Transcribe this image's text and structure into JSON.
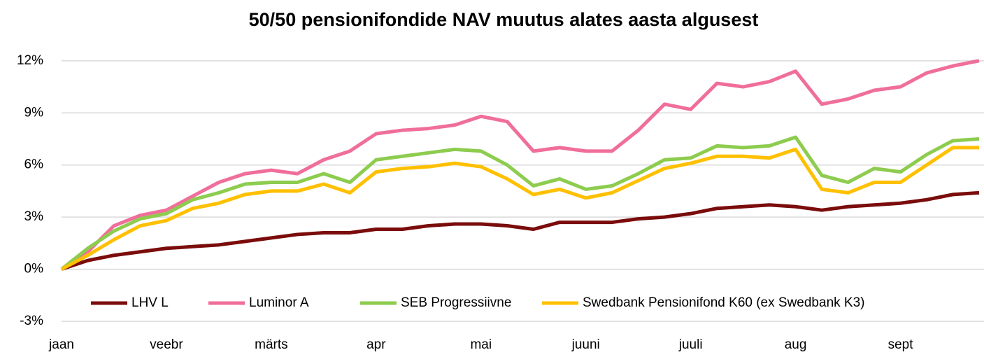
{
  "chart_data": {
    "type": "line",
    "title": "50/50 pensionifondide NAV muutus alates aasta algusest",
    "categories": [
      "jaan",
      null,
      null,
      null,
      "veebr",
      null,
      null,
      null,
      "märts",
      null,
      null,
      null,
      "apr",
      null,
      null,
      null,
      "mai",
      null,
      null,
      null,
      "juuni",
      null,
      null,
      null,
      "juuli",
      null,
      null,
      null,
      "aug",
      null,
      null,
      null,
      "sept",
      null,
      null,
      null
    ],
    "series": [
      {
        "name": "LHV L",
        "color": "#7b0c0c",
        "values": [
          0,
          0.5,
          0.8,
          1.0,
          1.2,
          1.3,
          1.4,
          1.6,
          1.8,
          2.0,
          2.1,
          2.1,
          2.3,
          2.3,
          2.5,
          2.6,
          2.6,
          2.5,
          2.3,
          2.7,
          2.7,
          2.7,
          2.9,
          3.0,
          3.2,
          3.5,
          3.6,
          3.7,
          3.6,
          3.4,
          3.6,
          3.7,
          3.8,
          4.0,
          4.3,
          4.4
        ]
      },
      {
        "name": "Luminor A",
        "color": "#f06e9b",
        "values": [
          0,
          1.0,
          2.5,
          3.1,
          3.4,
          4.2,
          5.0,
          5.5,
          5.7,
          5.5,
          6.3,
          6.8,
          7.8,
          8.0,
          8.1,
          8.3,
          8.8,
          8.5,
          6.8,
          7.0,
          6.8,
          6.8,
          8.0,
          9.5,
          9.2,
          10.7,
          10.5,
          10.8,
          11.4,
          9.5,
          9.8,
          10.3,
          10.5,
          11.3,
          11.7,
          12.0
        ]
      },
      {
        "name": "SEB Progressiivne",
        "color": "#8dcc4e",
        "values": [
          0,
          1.2,
          2.2,
          2.9,
          3.2,
          4.0,
          4.4,
          4.9,
          5.0,
          5.0,
          5.5,
          5.0,
          6.3,
          6.5,
          6.7,
          6.9,
          6.8,
          6.0,
          4.8,
          5.2,
          4.6,
          4.8,
          5.5,
          6.3,
          6.4,
          7.1,
          7.0,
          7.1,
          7.6,
          5.4,
          5.0,
          5.8,
          5.6,
          6.6,
          7.4,
          7.5
        ]
      },
      {
        "name": "Swedbank Pensionifond K60 (ex Swedbank K3)",
        "color": "#ffc000",
        "values": [
          0,
          0.8,
          1.7,
          2.5,
          2.8,
          3.5,
          3.8,
          4.3,
          4.5,
          4.5,
          4.9,
          4.4,
          5.6,
          5.8,
          5.9,
          6.1,
          5.9,
          5.2,
          4.3,
          4.6,
          4.1,
          4.4,
          5.1,
          5.8,
          6.1,
          6.5,
          6.5,
          6.4,
          6.9,
          4.6,
          4.4,
          5.0,
          5.0,
          6.0,
          7.0,
          7.0
        ]
      }
    ],
    "ylim": [
      -3,
      13
    ],
    "yticks": [
      {
        "value": -3,
        "label": "-3%"
      },
      {
        "value": 0,
        "label": "0%"
      },
      {
        "value": 3,
        "label": "3%"
      },
      {
        "value": 6,
        "label": "6%"
      },
      {
        "value": 9,
        "label": "9%"
      },
      {
        "value": 12,
        "label": "12%"
      }
    ],
    "grid": true,
    "legend": "bottom"
  }
}
